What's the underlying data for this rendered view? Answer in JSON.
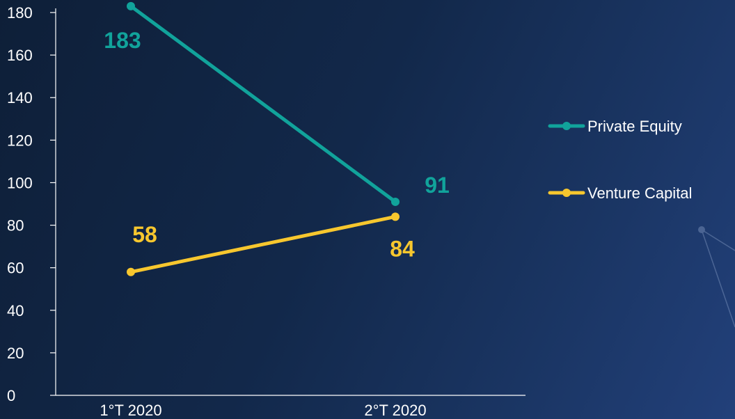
{
  "chart_data": {
    "type": "line",
    "categories": [
      "1°T 2020",
      "2°T 2020"
    ],
    "series": [
      {
        "name": "Private Equity",
        "values": [
          183,
          91
        ],
        "color": "#11a39b",
        "labels": [
          "183",
          "91"
        ]
      },
      {
        "name": "Venture Capital",
        "values": [
          58,
          84
        ],
        "color": "#f7c72e",
        "labels": [
          "58",
          "84"
        ]
      }
    ],
    "ylim": [
      0,
      180
    ],
    "yticks": [
      0,
      20,
      40,
      60,
      80,
      100,
      120,
      140,
      160,
      180
    ],
    "grid": false,
    "legend_position": "right",
    "title": "",
    "xlabel": "",
    "ylabel": ""
  },
  "colors": {
    "axis": "#ffffff",
    "text": "#ffffff",
    "background_dark": "#0e1f38",
    "background_light": "#22407a"
  }
}
